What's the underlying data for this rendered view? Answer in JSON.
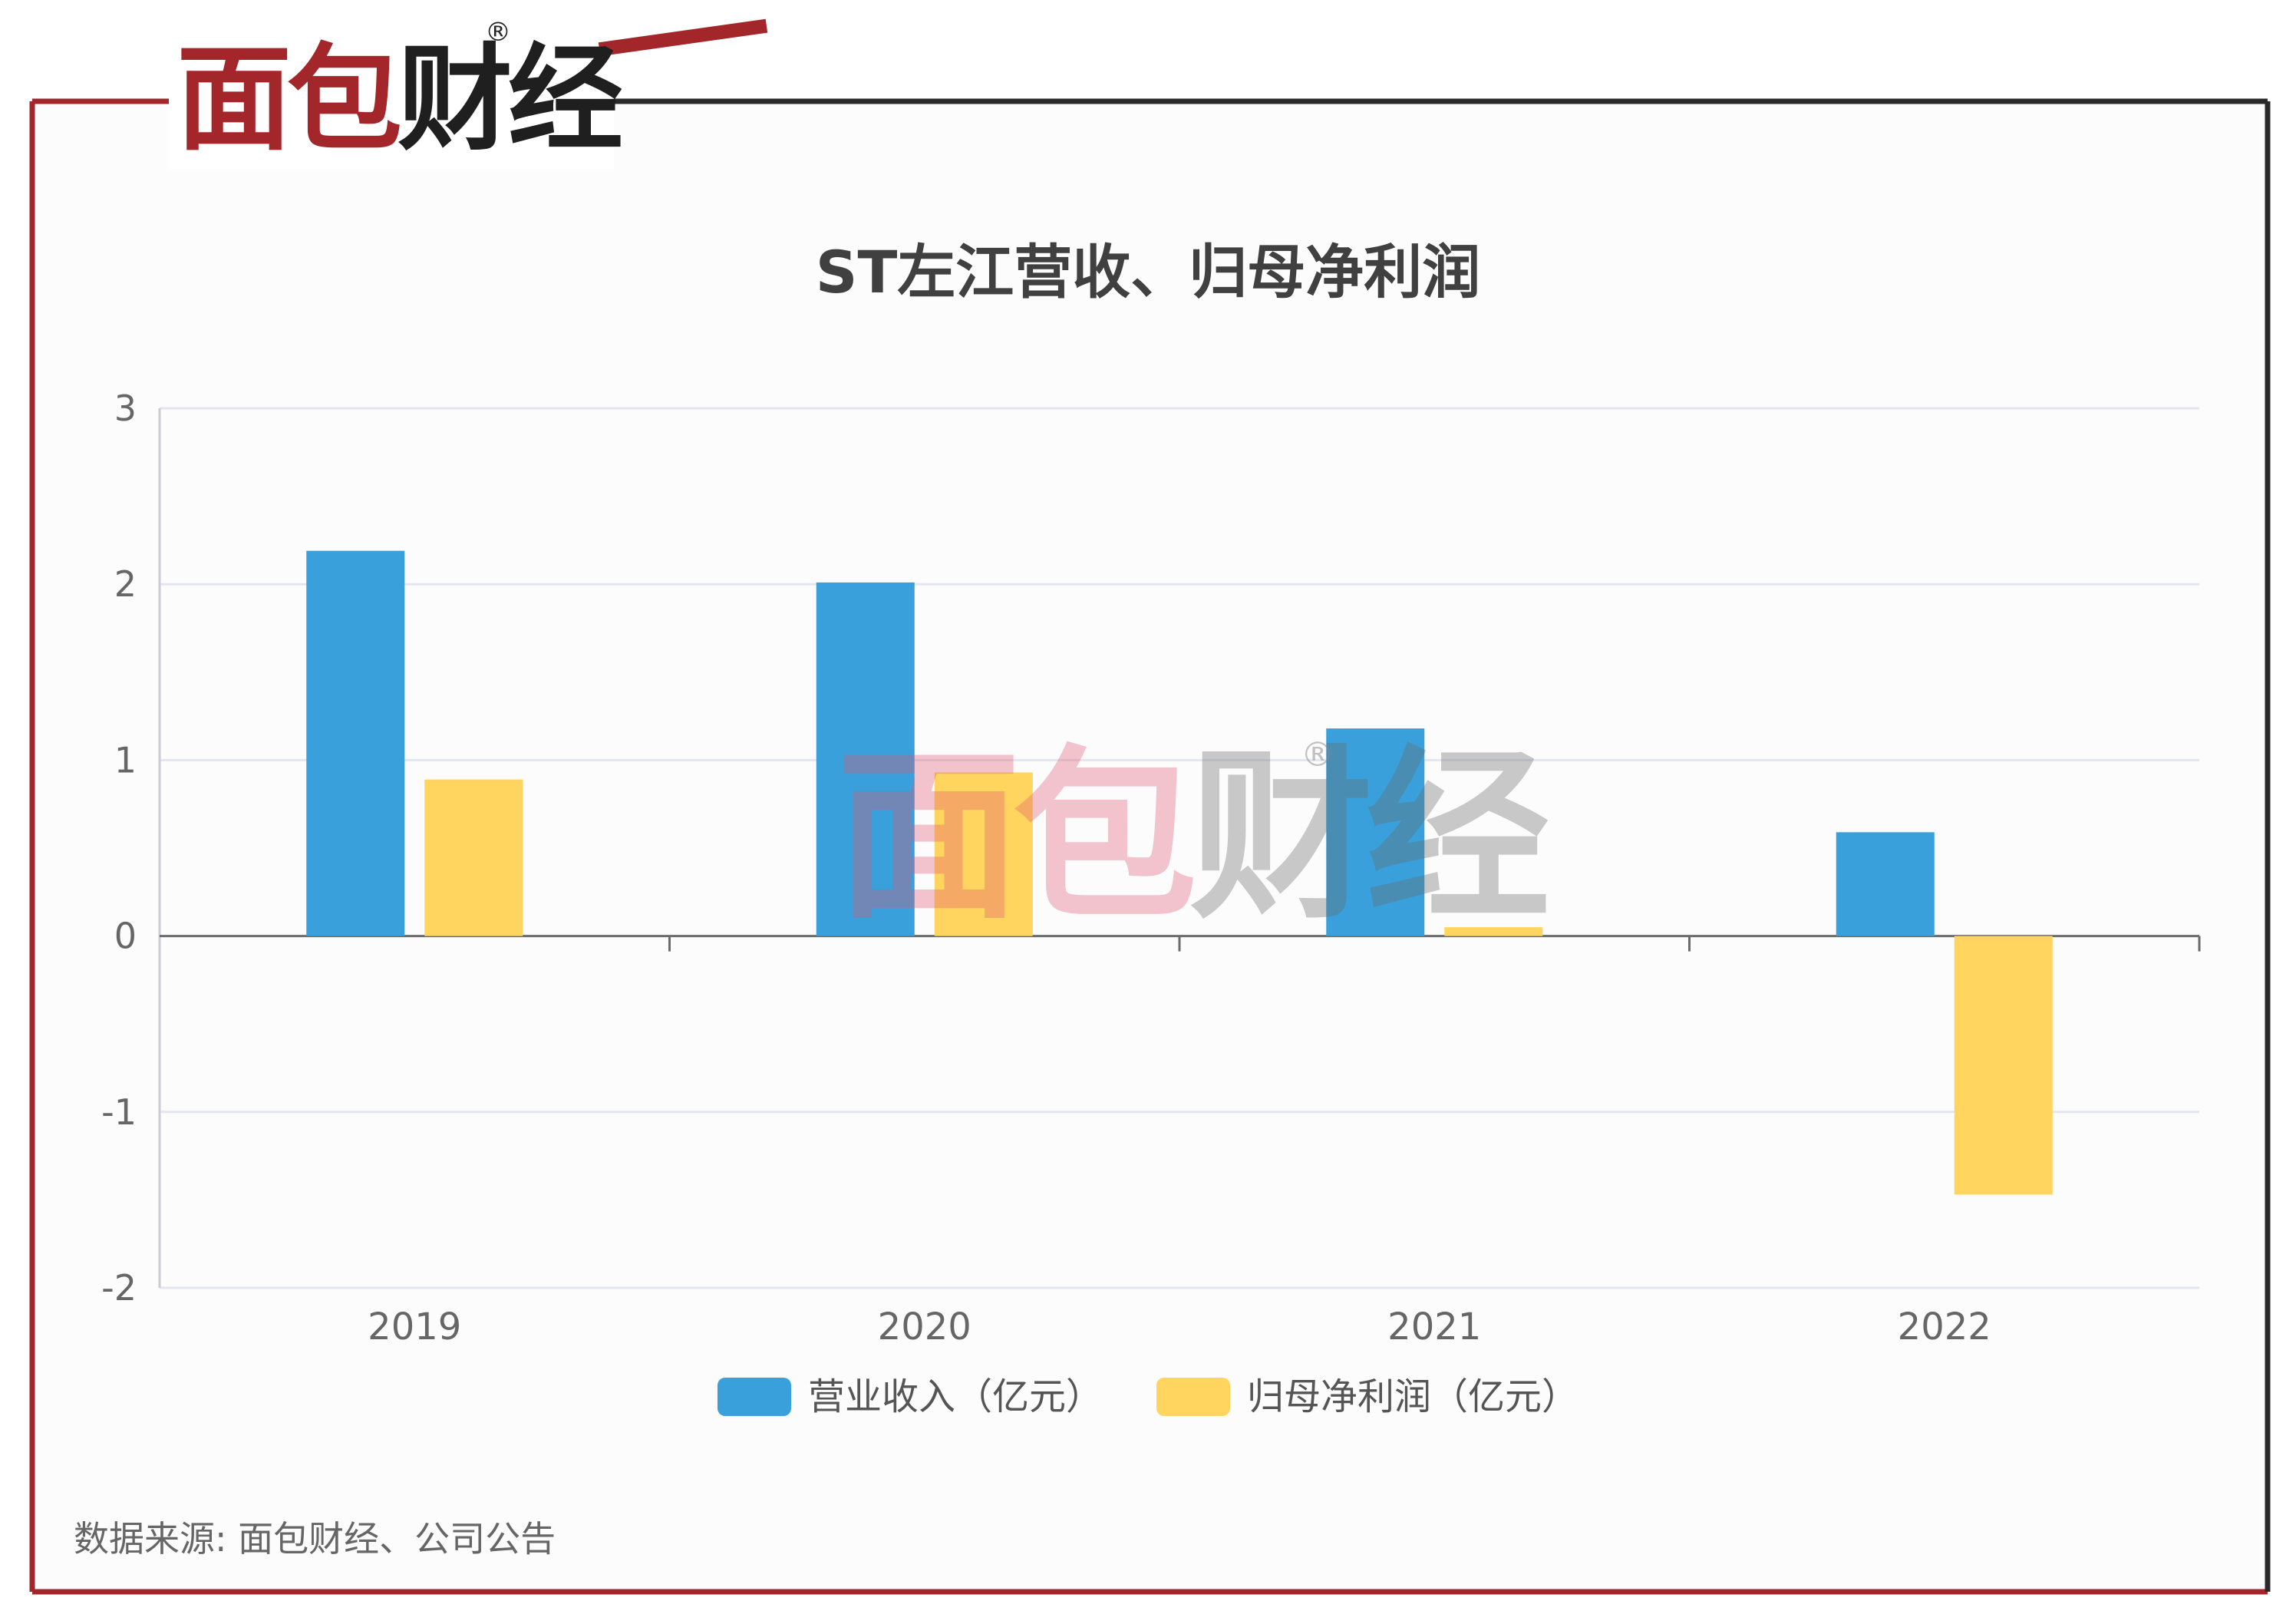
{
  "brand": {
    "name": "面包财经",
    "registered_mark": "®",
    "colors": {
      "red": "#a3262b",
      "dark": "#1f1f1f"
    }
  },
  "chart_data": {
    "type": "bar",
    "title": "ST左江营收、归母净利润",
    "categories": [
      "2019",
      "2020",
      "2021",
      "2022"
    ],
    "series": [
      {
        "name": "营业收入（亿元）",
        "color": "#39a0dc",
        "values": [
          2.19,
          2.01,
          1.18,
          0.59
        ]
      },
      {
        "name": "归母净利润（亿元）",
        "color": "#ffd55f",
        "values": [
          0.89,
          0.93,
          0.05,
          -1.47
        ]
      }
    ],
    "ylim": [
      -2,
      3
    ],
    "yticks": [
      "-2",
      "-1",
      "0",
      "1",
      "2",
      "3"
    ],
    "xlabel": "",
    "ylabel": "",
    "grid": true,
    "legend_position": "bottom"
  },
  "source_text": "数据来源: 面包财经、公司公告",
  "watermark": {
    "text": "面包财经",
    "registered_mark": "®"
  }
}
